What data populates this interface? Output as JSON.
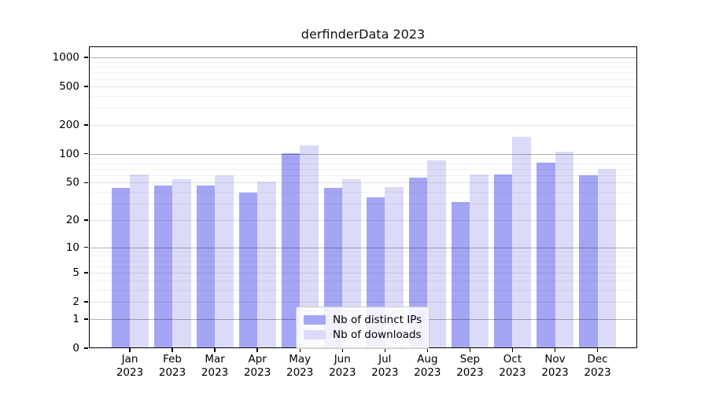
{
  "chart_data": {
    "type": "bar",
    "title": "derfinderData 2023",
    "y_scale": "log10(1+x)",
    "x": [
      "Jan",
      "Feb",
      "Mar",
      "Apr",
      "May",
      "Jun",
      "Jul",
      "Aug",
      "Sep",
      "Oct",
      "Nov",
      "Dec"
    ],
    "x_year": "2023",
    "series": [
      {
        "name": "Nb of distinct IPs",
        "color": "#a5a5f5",
        "values": [
          44,
          47,
          47,
          39,
          101,
          44,
          35,
          56,
          31,
          61,
          81,
          60
        ]
      },
      {
        "name": "Nb of downloads",
        "color": "#dbdbf9",
        "values": [
          61,
          54,
          60,
          51,
          123,
          54,
          45,
          85,
          61,
          152,
          105,
          70
        ]
      }
    ],
    "y_ticks": [
      0,
      1,
      2,
      5,
      10,
      20,
      50,
      100,
      200,
      500,
      1000
    ],
    "ylim": [
      0,
      1300
    ],
    "grid": "horizontal",
    "legend_position": "bottom-center"
  },
  "colors": {
    "bar_distinct_ips": "#a5a5f5",
    "bar_downloads": "#dbdbf9",
    "major_gridline": "#b3b3b3",
    "mid_gridline": "#e2e2e2",
    "minor_gridline": "#f1f1f1",
    "spine": "#000000",
    "legend_border": "#cccccc"
  }
}
